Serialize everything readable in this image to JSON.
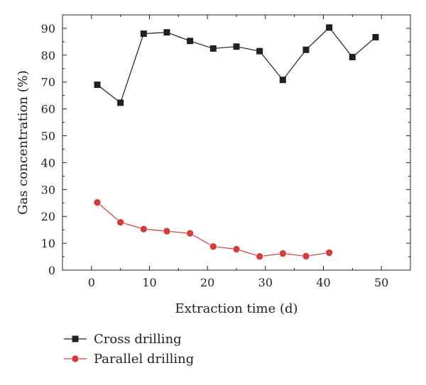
{
  "chart_data": {
    "type": "line",
    "xlabel": "Extraction time (d)",
    "ylabel": "Gas concentration (%)",
    "xlim": [
      -5,
      55
    ],
    "ylim": [
      0,
      95
    ],
    "x_ticks": [
      0,
      10,
      20,
      30,
      40,
      50
    ],
    "y_ticks": [
      0,
      10,
      20,
      30,
      40,
      50,
      60,
      70,
      80,
      90
    ],
    "grid": false,
    "legend_position": "bottom-left",
    "series": [
      {
        "name": "Cross drilling",
        "color": "#231f20",
        "marker": "square",
        "x": [
          1,
          5,
          9,
          13,
          17,
          21,
          25,
          29,
          33,
          37,
          41,
          45,
          49
        ],
        "y": [
          69,
          62.3,
          88,
          88.5,
          85.3,
          82.5,
          83.2,
          81.5,
          70.8,
          82,
          90.3,
          79.3,
          86.7
        ]
      },
      {
        "name": "Parallel drilling",
        "color": "#d23d3f",
        "marker": "circle",
        "x": [
          1,
          5,
          9,
          13,
          17,
          21,
          25,
          29,
          33,
          37,
          41
        ],
        "y": [
          25.2,
          17.8,
          15.3,
          14.5,
          13.7,
          8.8,
          7.8,
          5.1,
          6.2,
          5.2,
          6.5
        ]
      }
    ]
  }
}
